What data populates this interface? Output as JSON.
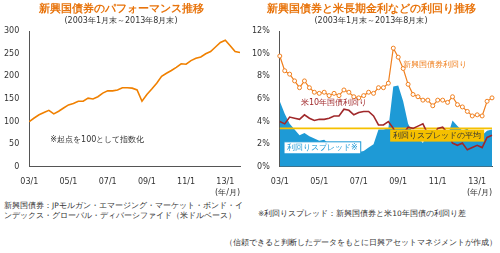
{
  "chart_data": [
    {
      "type": "line",
      "title": "新興国債券のパフォーマンス推移",
      "subtitle": "(2003年1月末～2013年8月末)",
      "x_label": "(年/月)",
      "note": "※起点を100として指数化",
      "categories": [
        "03/1",
        null,
        null,
        null,
        null,
        null,
        null,
        null,
        "05/1",
        null,
        null,
        null,
        null,
        null,
        null,
        null,
        "07/1",
        null,
        null,
        null,
        null,
        null,
        null,
        null,
        "09/1",
        null,
        null,
        null,
        null,
        null,
        null,
        null,
        "11/1",
        null,
        null,
        null,
        null,
        null,
        null,
        null,
        "13/1",
        null,
        null,
        null
      ],
      "values": [
        100,
        108,
        115,
        120,
        125,
        117,
        123,
        130,
        137,
        140,
        145,
        145,
        152,
        150,
        155,
        163,
        168,
        168,
        170,
        175,
        175,
        174,
        170,
        145,
        160,
        172,
        185,
        200,
        207,
        213,
        220,
        228,
        227,
        235,
        240,
        243,
        250,
        255,
        265,
        275,
        280,
        268,
        255,
        253
      ],
      "color": "#f08000",
      "ylim": [
        0,
        300
      ],
      "yticks": [
        0,
        50,
        100,
        150,
        200,
        250,
        300
      ],
      "grid": false
    },
    {
      "type": "line",
      "title": "新興国債券と米長期金利などの利回り推移",
      "subtitle": "(2003年1月末～2013年8月末)",
      "x_label": "(年/月)",
      "note": "※利回りスプレッド：新興国債券と米10年国債の利回り差",
      "categories": [
        "03/1",
        null,
        null,
        null,
        null,
        null,
        null,
        null,
        "05/1",
        null,
        null,
        null,
        null,
        null,
        null,
        null,
        "07/1",
        null,
        null,
        null,
        null,
        null,
        null,
        null,
        "09/1",
        null,
        null,
        null,
        null,
        null,
        null,
        null,
        "11/1",
        null,
        null,
        null,
        null,
        null,
        null,
        null,
        "13/1",
        null,
        null,
        null
      ],
      "series": [
        {
          "name": "新興国債券利回り",
          "color": "#f08020",
          "marker": "circle",
          "values": [
            9.8,
            8.5,
            8.2,
            7.6,
            7.0,
            7.6,
            7.0,
            6.6,
            6.5,
            6.6,
            6.3,
            6.5,
            6.3,
            6.8,
            6.6,
            6.2,
            6.1,
            6.3,
            6.6,
            6.5,
            7.0,
            7.0,
            7.4,
            10.5,
            9.7,
            8.7,
            7.3,
            6.4,
            6.2,
            5.9,
            5.9,
            5.4,
            5.9,
            5.9,
            5.7,
            6.2,
            5.5,
            5.3,
            4.9,
            4.5,
            4.6,
            4.5,
            5.8,
            6.1
          ]
        },
        {
          "name": "米10年国債利回り",
          "color": "#a0282a",
          "values": [
            4.0,
            3.8,
            4.4,
            4.3,
            4.2,
            4.6,
            4.3,
            4.1,
            4.2,
            4.2,
            4.3,
            4.5,
            4.5,
            5.1,
            5.0,
            4.6,
            4.8,
            4.9,
            4.9,
            4.5,
            3.7,
            3.7,
            4.0,
            3.4,
            2.5,
            2.9,
            3.5,
            3.4,
            3.6,
            3.8,
            2.9,
            2.6,
            3.4,
            3.5,
            3.0,
            2.1,
            1.9,
            2.1,
            1.5,
            1.7,
            1.9,
            1.7,
            2.6,
            2.8
          ]
        },
        {
          "name": "利回りスプレッド※",
          "color": "#1e9ad6",
          "type": "area",
          "values": [
            5.8,
            4.7,
            3.8,
            3.3,
            2.8,
            3.0,
            2.7,
            2.5,
            2.3,
            2.4,
            2.0,
            2.0,
            1.8,
            1.7,
            1.6,
            1.6,
            1.3,
            1.4,
            1.7,
            2.0,
            3.3,
            3.3,
            3.4,
            7.1,
            7.2,
            5.8,
            3.8,
            3.0,
            2.6,
            2.1,
            3.0,
            2.8,
            2.5,
            2.4,
            2.7,
            4.1,
            3.6,
            3.2,
            3.4,
            2.8,
            2.7,
            2.8,
            3.2,
            3.3
          ]
        },
        {
          "name": "利回りスプレッドの平均",
          "color": "#f5c000",
          "values": [
            3.4,
            3.4,
            3.4,
            3.4,
            3.4,
            3.4,
            3.4,
            3.4,
            3.4,
            3.4,
            3.4,
            3.4,
            3.4,
            3.4,
            3.4,
            3.4,
            3.4,
            3.4,
            3.4,
            3.4,
            3.4,
            3.4,
            3.4,
            3.4,
            3.4,
            3.4,
            3.4,
            3.4,
            3.4,
            3.4,
            3.4,
            3.4,
            3.4,
            3.4,
            3.4,
            3.4,
            3.4,
            3.4,
            3.4,
            3.4,
            3.4,
            3.4,
            3.4,
            3.4
          ]
        }
      ],
      "ylim": [
        0,
        12
      ],
      "yticks": [
        {
          "value": 0,
          "label": "0%"
        },
        {
          "value": 2,
          "label": "2%"
        },
        {
          "value": 4,
          "label": "4%"
        },
        {
          "value": 6,
          "label": "6%"
        },
        {
          "value": 8,
          "label": "8%"
        },
        {
          "value": 10,
          "label": "10%"
        },
        {
          "value": 12,
          "label": "12%"
        }
      ],
      "grid": false
    }
  ],
  "footnotes": [
    "新興国債券：JPモルガン・エマージング・マーケット・ボンド・インデックス・グローバル・ディバーシファイド（米ドルベース）",
    "（信頼できると判断したデータをもとに日興アセットマネジメントが作成）"
  ]
}
